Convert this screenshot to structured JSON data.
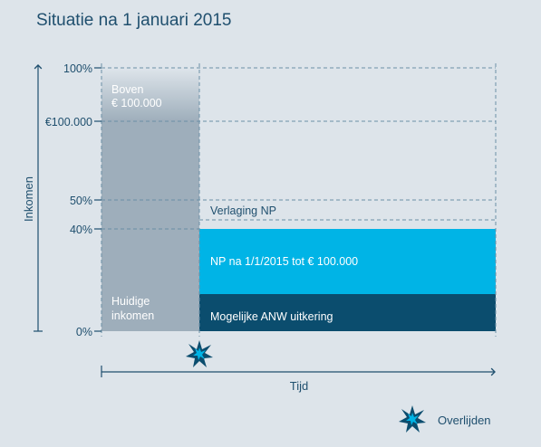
{
  "title": "Situatie na 1 januari 2015",
  "y_axis_label": "Inkomen",
  "x_axis_label": "Tijd",
  "ticks": {
    "t100pct": "100%",
    "t100k": "€100.000",
    "t50pct": "50%",
    "t40pct": "40%",
    "t0pct": "0%"
  },
  "blocks": {
    "boven": {
      "line1": "Boven",
      "line2": "€ 100.000"
    },
    "huidige": {
      "line1": "Huidige",
      "line2": "inkomen"
    },
    "verlaging": "Verlaging NP",
    "np": "NP na 1/1/2015 tot € 100.000",
    "anw": "Mogelijke ANW uitkering"
  },
  "legend": {
    "label": "Overlijden",
    "icon": "death-star-icon"
  },
  "colors": {
    "background": "#dde4ea",
    "text": "#1f4f6e",
    "gray_bar": "#9eaebb",
    "np_block": "#00b4e6",
    "anw_block": "#0b4d6e",
    "guide": "#6b8fa6"
  }
}
